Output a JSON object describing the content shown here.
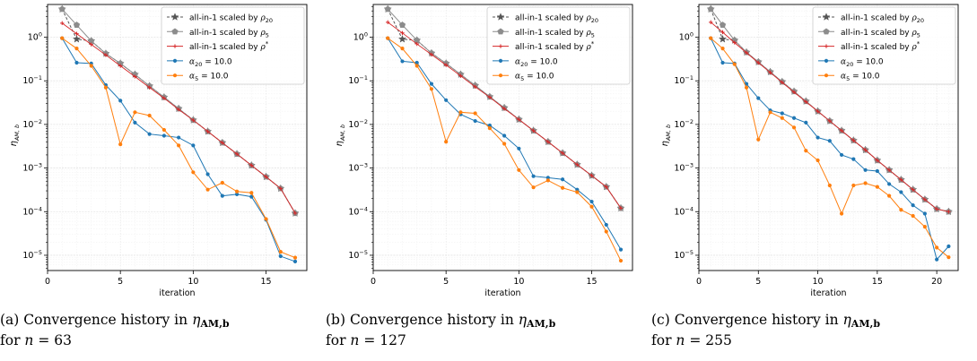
{
  "chart_data": [
    {
      "type": "line",
      "caption": {
        "letter": "(a)",
        "text": "Convergence history in",
        "symbol": "η",
        "sub": "AM,b",
        "line2_prefix": "for",
        "var": "n",
        "eq": "=",
        "value": "63"
      },
      "xlabel": "iteration",
      "ylabel": "η",
      "ylabel_sub": "AM, b",
      "x_ticks": [
        0,
        5,
        10,
        15
      ],
      "xlim": [
        0,
        17.8
      ],
      "ylim_log10": [
        -5.35,
        0.75
      ],
      "y_ticks": [
        "10^0",
        "10^-1",
        "10^-2",
        "10^-3",
        "10^-4",
        "10^-5"
      ],
      "y_ticks_display": [
        {
          "base": "10",
          "exp": "0"
        },
        {
          "base": "10",
          "exp": "−1"
        },
        {
          "base": "10",
          "exp": "−2"
        },
        {
          "base": "10",
          "exp": "−3"
        },
        {
          "base": "10",
          "exp": "−4"
        },
        {
          "base": "10",
          "exp": "−5"
        }
      ],
      "grid": true,
      "legend_placement": "top-right",
      "series": [
        {
          "name": "all-in-1 scaled by ρ20",
          "legend_main": "all-in-1 scaled by",
          "legend_sym": "ρ",
          "legend_sub": "20",
          "color": "#555555",
          "marker": "star",
          "dash": "dashed",
          "x": [
            1,
            2,
            3,
            4,
            5,
            6,
            7,
            8,
            9,
            10,
            11,
            12,
            13,
            14,
            15,
            16,
            17
          ],
          "y": [
            4.4,
            0.9,
            0.82,
            0.42,
            0.25,
            0.14,
            0.076,
            0.042,
            0.023,
            0.0126,
            0.0069,
            0.0038,
            0.0021,
            0.00115,
            0.00063,
            0.00034,
            9.2e-05
          ]
        },
        {
          "name": "all-in-1 scaled by ρ5",
          "legend_main": "all-in-1 scaled by",
          "legend_sym": "ρ",
          "legend_sub": "5",
          "color": "#8c8c8c",
          "marker": "pentagon",
          "dash": "solid",
          "x": [
            1,
            2,
            3,
            4,
            5,
            6,
            7,
            8,
            9,
            10,
            11,
            12,
            13,
            14,
            15,
            16,
            17
          ],
          "y": [
            4.4,
            1.9,
            0.82,
            0.42,
            0.25,
            0.14,
            0.076,
            0.042,
            0.023,
            0.0126,
            0.0069,
            0.0038,
            0.0021,
            0.00115,
            0.00063,
            0.00034,
            9.2e-05
          ]
        },
        {
          "name": "all-in-1 scaled by ρ*",
          "legend_main": "all-in-1 scaled by",
          "legend_sym": "ρ",
          "legend_sup": "*",
          "color": "#d62728",
          "marker": "plus",
          "dash": "solid",
          "x": [
            1,
            2,
            3,
            4,
            5,
            6,
            7,
            8,
            9,
            10,
            11,
            12,
            13,
            14,
            15,
            16,
            17
          ],
          "y": [
            2.1,
            1.2,
            0.68,
            0.39,
            0.22,
            0.125,
            0.07,
            0.04,
            0.022,
            0.0125,
            0.0069,
            0.0038,
            0.0021,
            0.00115,
            0.00063,
            0.00034,
            9.2e-05
          ]
        },
        {
          "name": "α20 = 10.0",
          "legend_sym": "α",
          "legend_sub": "20",
          "legend_tail": " = 10.0",
          "color": "#1f77b4",
          "marker": "dot",
          "dash": "solid",
          "x": [
            1,
            2,
            3,
            4,
            5,
            6,
            7,
            8,
            9,
            10,
            11,
            12,
            13,
            14,
            15,
            16,
            17
          ],
          "y": [
            0.95,
            0.26,
            0.25,
            0.08,
            0.035,
            0.011,
            0.006,
            0.0055,
            0.005,
            0.0033,
            0.00072,
            0.00023,
            0.00025,
            0.00022,
            6.5e-05,
            9.5e-06,
            7.2e-06
          ]
        },
        {
          "name": "α5 = 10.0",
          "legend_sym": "α",
          "legend_sub": "5",
          "legend_tail": " = 10.0",
          "color": "#ff7f0e",
          "marker": "dot",
          "dash": "solid",
          "x": [
            1,
            2,
            3,
            4,
            5,
            6,
            7,
            8,
            9,
            10,
            11,
            12,
            13,
            14,
            15,
            16,
            17
          ],
          "y": [
            0.95,
            0.55,
            0.22,
            0.07,
            0.0035,
            0.019,
            0.016,
            0.0075,
            0.0033,
            0.0008,
            0.00032,
            0.00046,
            0.00029,
            0.00027,
            6.8e-05,
            1.2e-05,
            8.8e-06
          ]
        }
      ]
    },
    {
      "type": "line",
      "caption": {
        "letter": "(b)",
        "text": "Convergence history in",
        "symbol": "η",
        "sub": "AM,b",
        "line2_prefix": "for",
        "var": "n",
        "eq": "=",
        "value": "127"
      },
      "xlabel": "iteration",
      "ylabel": "η",
      "ylabel_sub": "AM, b",
      "x_ticks": [
        0,
        5,
        10,
        15
      ],
      "xlim": [
        0,
        17.8
      ],
      "ylim_log10": [
        -5.35,
        0.75
      ],
      "y_ticks": [
        "10^0",
        "10^-1",
        "10^-2",
        "10^-3",
        "10^-4",
        "10^-5"
      ],
      "y_ticks_display": [
        {
          "base": "10",
          "exp": "0"
        },
        {
          "base": "10",
          "exp": "−1"
        },
        {
          "base": "10",
          "exp": "−2"
        },
        {
          "base": "10",
          "exp": "−3"
        },
        {
          "base": "10",
          "exp": "−4"
        },
        {
          "base": "10",
          "exp": "−5"
        }
      ],
      "grid": true,
      "legend_placement": "top-right",
      "series": [
        {
          "name": "all-in-1 scaled by ρ20",
          "legend_main": "all-in-1 scaled by",
          "legend_sym": "ρ",
          "legend_sub": "20",
          "color": "#555555",
          "marker": "star",
          "dash": "dashed",
          "x": [
            1,
            2,
            3,
            4,
            5,
            6,
            7,
            8,
            9,
            10,
            11,
            12,
            13,
            14,
            15,
            16,
            17
          ],
          "y": [
            4.4,
            0.9,
            0.85,
            0.43,
            0.25,
            0.14,
            0.078,
            0.043,
            0.024,
            0.013,
            0.0072,
            0.004,
            0.0022,
            0.0012,
            0.00067,
            0.00037,
            0.00012
          ]
        },
        {
          "name": "all-in-1 scaled by ρ5",
          "legend_main": "all-in-1 scaled by",
          "legend_sym": "ρ",
          "legend_sub": "5",
          "color": "#8c8c8c",
          "marker": "pentagon",
          "dash": "solid",
          "x": [
            1,
            2,
            3,
            4,
            5,
            6,
            7,
            8,
            9,
            10,
            11,
            12,
            13,
            14,
            15,
            16,
            17
          ],
          "y": [
            4.4,
            1.9,
            0.85,
            0.43,
            0.25,
            0.14,
            0.078,
            0.043,
            0.024,
            0.013,
            0.0072,
            0.004,
            0.0022,
            0.0012,
            0.00067,
            0.00037,
            0.00012
          ]
        },
        {
          "name": "all-in-1 scaled by ρ*",
          "legend_main": "all-in-1 scaled by",
          "legend_sym": "ρ",
          "legend_sup": "*",
          "color": "#d62728",
          "marker": "plus",
          "dash": "solid",
          "x": [
            1,
            2,
            3,
            4,
            5,
            6,
            7,
            8,
            9,
            10,
            11,
            12,
            13,
            14,
            15,
            16,
            17
          ],
          "y": [
            2.2,
            1.25,
            0.7,
            0.4,
            0.23,
            0.13,
            0.073,
            0.042,
            0.023,
            0.013,
            0.0072,
            0.004,
            0.0022,
            0.0012,
            0.00067,
            0.00037,
            0.00012
          ]
        },
        {
          "name": "α20 = 10.0",
          "legend_sym": "α",
          "legend_sub": "20",
          "legend_tail": " = 10.0",
          "color": "#1f77b4",
          "marker": "dot",
          "dash": "solid",
          "x": [
            1,
            2,
            3,
            4,
            5,
            6,
            7,
            8,
            9,
            10,
            11,
            12,
            13,
            14,
            15,
            16,
            17
          ],
          "y": [
            0.95,
            0.28,
            0.26,
            0.085,
            0.036,
            0.017,
            0.012,
            0.0095,
            0.0055,
            0.0028,
            0.00065,
            0.0006,
            0.00055,
            0.00032,
            0.00017,
            5e-05,
            1.35e-05
          ]
        },
        {
          "name": "α5 = 10.0",
          "legend_sym": "α",
          "legend_sub": "5",
          "legend_tail": " = 10.0",
          "color": "#ff7f0e",
          "marker": "dot",
          "dash": "solid",
          "x": [
            1,
            2,
            3,
            4,
            5,
            6,
            7,
            8,
            9,
            10,
            11,
            12,
            13,
            14,
            15,
            16,
            17
          ],
          "y": [
            0.95,
            0.55,
            0.22,
            0.065,
            0.004,
            0.019,
            0.018,
            0.0082,
            0.0036,
            0.0009,
            0.00036,
            0.00052,
            0.00035,
            0.00028,
            0.00013,
            3.5e-05,
            7.5e-06
          ]
        }
      ]
    },
    {
      "type": "line",
      "caption": {
        "letter": "(c)",
        "text": "Convergence history in",
        "symbol": "η",
        "sub": "AM,b",
        "line2_prefix": "for",
        "var": "n",
        "eq": "=",
        "value": "255"
      },
      "xlabel": "iteration",
      "ylabel": "η",
      "ylabel_sub": "AM, b",
      "x_ticks": [
        0,
        5,
        10,
        15,
        20
      ],
      "xlim": [
        0,
        21.8
      ],
      "ylim_log10": [
        -5.35,
        0.75
      ],
      "y_ticks": [
        "10^0",
        "10^-1",
        "10^-2",
        "10^-3",
        "10^-4",
        "10^-5"
      ],
      "y_ticks_display": [
        {
          "base": "10",
          "exp": "0"
        },
        {
          "base": "10",
          "exp": "−1"
        },
        {
          "base": "10",
          "exp": "−2"
        },
        {
          "base": "10",
          "exp": "−3"
        },
        {
          "base": "10",
          "exp": "−4"
        },
        {
          "base": "10",
          "exp": "−5"
        }
      ],
      "grid": true,
      "legend_placement": "top-right",
      "series": [
        {
          "name": "all-in-1 scaled by ρ20",
          "legend_main": "all-in-1 scaled by",
          "legend_sym": "ρ",
          "legend_sub": "20",
          "color": "#555555",
          "marker": "star",
          "dash": "dashed",
          "x": [
            1,
            2,
            3,
            4,
            5,
            6,
            7,
            8,
            9,
            10,
            11,
            12,
            13,
            14,
            15,
            16,
            17,
            18,
            19,
            20,
            21
          ],
          "y": [
            4.4,
            0.9,
            0.85,
            0.45,
            0.27,
            0.16,
            0.095,
            0.057,
            0.034,
            0.02,
            0.012,
            0.0072,
            0.0043,
            0.0026,
            0.0015,
            0.0009,
            0.00054,
            0.00032,
            0.00019,
            0.000115,
            0.0001
          ]
        },
        {
          "name": "all-in-1 scaled by ρ5",
          "legend_main": "all-in-1 scaled by",
          "legend_sym": "ρ",
          "legend_sub": "5",
          "color": "#8c8c8c",
          "marker": "pentagon",
          "dash": "solid",
          "x": [
            1,
            2,
            3,
            4,
            5,
            6,
            7,
            8,
            9,
            10,
            11,
            12,
            13,
            14,
            15,
            16,
            17,
            18,
            19,
            20,
            21
          ],
          "y": [
            4.4,
            1.9,
            0.85,
            0.45,
            0.27,
            0.16,
            0.095,
            0.057,
            0.034,
            0.02,
            0.012,
            0.0072,
            0.0043,
            0.0026,
            0.0015,
            0.0009,
            0.00054,
            0.00032,
            0.00019,
            0.000115,
            0.0001
          ]
        },
        {
          "name": "all-in-1 scaled by ρ*",
          "legend_main": "all-in-1 scaled by",
          "legend_sym": "ρ",
          "legend_sup": "*",
          "color": "#d62728",
          "marker": "plus",
          "dash": "solid",
          "x": [
            1,
            2,
            3,
            4,
            5,
            6,
            7,
            8,
            9,
            10,
            11,
            12,
            13,
            14,
            15,
            16,
            17,
            18,
            19,
            20,
            21
          ],
          "y": [
            2.2,
            1.3,
            0.75,
            0.44,
            0.26,
            0.155,
            0.092,
            0.055,
            0.033,
            0.02,
            0.012,
            0.0072,
            0.0043,
            0.0026,
            0.0015,
            0.0009,
            0.00054,
            0.00032,
            0.00019,
            0.000115,
            0.0001
          ]
        },
        {
          "name": "α20 = 10.0",
          "legend_sym": "α",
          "legend_sub": "20",
          "legend_tail": " = 10.0",
          "color": "#1f77b4",
          "marker": "dot",
          "dash": "solid",
          "x": [
            1,
            2,
            3,
            4,
            5,
            6,
            7,
            8,
            9,
            10,
            11,
            12,
            13,
            14,
            15,
            16,
            17,
            18,
            19,
            20,
            21
          ],
          "y": [
            0.95,
            0.26,
            0.25,
            0.085,
            0.04,
            0.021,
            0.018,
            0.014,
            0.011,
            0.005,
            0.0042,
            0.002,
            0.0016,
            0.0009,
            0.00085,
            0.00043,
            0.00028,
            0.00014,
            9e-05,
            8e-06,
            1.6e-05
          ]
        },
        {
          "name": "α5 = 10.0",
          "legend_sym": "α",
          "legend_sub": "5",
          "legend_tail": " = 10.0",
          "color": "#ff7f0e",
          "marker": "dot",
          "dash": "solid",
          "x": [
            1,
            2,
            3,
            4,
            5,
            6,
            7,
            8,
            9,
            10,
            11,
            12,
            13,
            14,
            15,
            16,
            17,
            18,
            19,
            20,
            21
          ],
          "y": [
            0.95,
            0.55,
            0.24,
            0.07,
            0.0045,
            0.019,
            0.014,
            0.0085,
            0.0025,
            0.0015,
            0.0004,
            9e-05,
            0.0004,
            0.00045,
            0.00037,
            0.00023,
            0.00011,
            8e-05,
            4.5e-05,
            1.5e-05,
            9e-06
          ]
        }
      ]
    }
  ]
}
